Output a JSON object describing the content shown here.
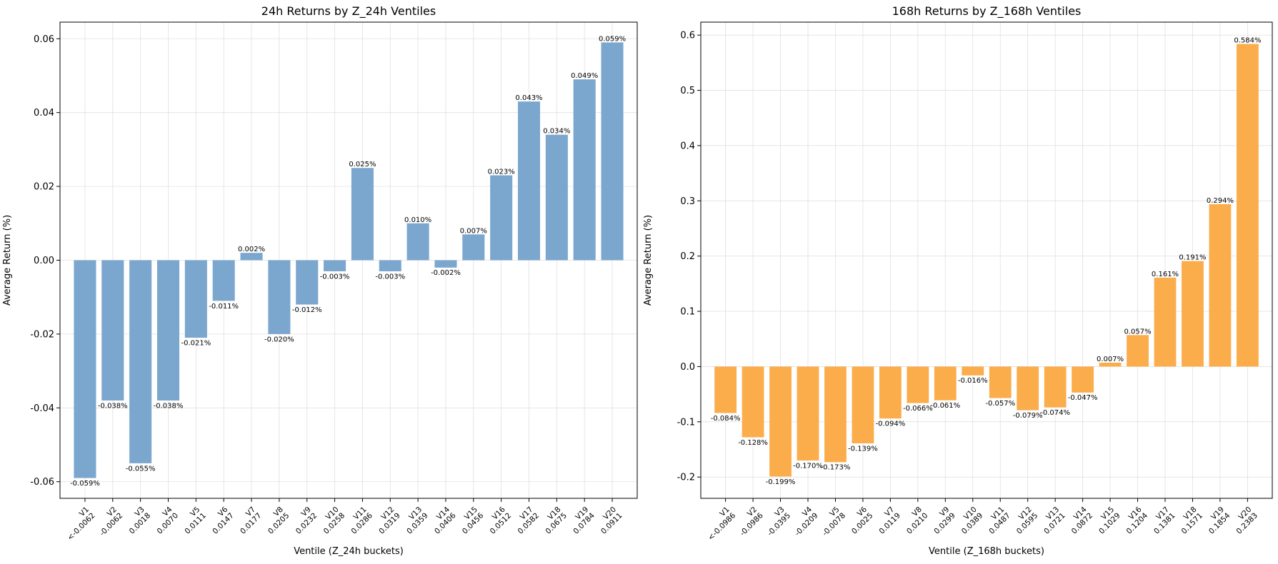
{
  "chart_data": [
    {
      "type": "bar",
      "title": "24h Returns by Z_24h Ventiles",
      "xlabel": "Ventile (Z_24h buckets)",
      "ylabel": "Average Return (%)",
      "ylim": [
        -0.0645,
        0.0645
      ],
      "yticks": [
        "-0.06",
        "-0.04",
        "-0.02",
        "0.00",
        "0.02",
        "0.04",
        "0.06"
      ],
      "ytick_values": [
        -0.06,
        -0.04,
        -0.02,
        0.0,
        0.02,
        0.04,
        0.06
      ],
      "grid": true,
      "color": "#7ba7cf",
      "categories": [
        "V1",
        "V2",
        "V3",
        "V4",
        "V5",
        "V6",
        "V7",
        "V8",
        "V9",
        "V10",
        "V11",
        "V12",
        "V13",
        "V14",
        "V15",
        "V16",
        "V17",
        "V18",
        "V19",
        "V20"
      ],
      "category_bounds": [
        "<-0.0062",
        "-0.0062",
        "0.0018",
        "0.0070",
        "0.0111",
        "0.0147",
        "0.0177",
        "0.0205",
        "0.0232",
        "0.0258",
        "0.0286",
        "0.0319",
        "0.0359",
        "0.0406",
        "0.0456",
        "0.0512",
        "0.0582",
        "0.0675",
        "0.0784",
        "0.0911"
      ],
      "values": [
        -0.059,
        -0.038,
        -0.055,
        -0.038,
        -0.021,
        -0.011,
        0.002,
        -0.02,
        -0.012,
        -0.003,
        0.025,
        -0.003,
        0.01,
        -0.002,
        0.007,
        0.023,
        0.043,
        0.034,
        0.049,
        0.059
      ],
      "value_labels": [
        "-0.059%",
        "-0.038%",
        "-0.055%",
        "-0.038%",
        "-0.021%",
        "-0.011%",
        "0.002%",
        "-0.020%",
        "-0.012%",
        "-0.003%",
        "0.025%",
        "-0.003%",
        "0.010%",
        "-0.002%",
        "0.007%",
        "0.023%",
        "0.043%",
        "0.034%",
        "0.049%",
        "0.059%"
      ]
    },
    {
      "type": "bar",
      "title": "168h Returns by Z_168h Ventiles",
      "xlabel": "Ventile (Z_168h buckets)",
      "ylabel": "Average Return (%)",
      "ylim": [
        -0.2385,
        0.6235
      ],
      "yticks": [
        "-0.2",
        "-0.1",
        "0.0",
        "0.1",
        "0.2",
        "0.3",
        "0.4",
        "0.5",
        "0.6"
      ],
      "ytick_values": [
        -0.2,
        -0.1,
        0.0,
        0.1,
        0.2,
        0.3,
        0.4,
        0.5,
        0.6
      ],
      "grid": true,
      "color": "#fbac4b",
      "categories": [
        "V1",
        "V2",
        "V3",
        "V4",
        "V5",
        "V6",
        "V7",
        "V8",
        "V9",
        "V10",
        "V11",
        "V12",
        "V13",
        "V14",
        "V15",
        "V16",
        "V17",
        "V18",
        "V19",
        "V20"
      ],
      "category_bounds": [
        "<-0.0986",
        "-0.0986",
        "-0.0395",
        "-0.0209",
        "-0.0078",
        "0.0025",
        "0.0119",
        "0.0210",
        "0.0299",
        "0.0389",
        "0.0487",
        "0.0595",
        "0.0721",
        "0.0872",
        "0.1029",
        "0.1204",
        "0.1381",
        "0.1571",
        "0.1854",
        "0.2383"
      ],
      "values": [
        -0.084,
        -0.128,
        -0.199,
        -0.17,
        -0.173,
        -0.139,
        -0.094,
        -0.066,
        -0.061,
        -0.016,
        -0.057,
        -0.079,
        -0.074,
        -0.047,
        0.007,
        0.057,
        0.161,
        0.191,
        0.294,
        0.584
      ],
      "value_labels": [
        "-0.084%",
        "-0.128%",
        "-0.199%",
        "-0.170%",
        "-0.173%",
        "-0.139%",
        "-0.094%",
        "-0.066%",
        "-0.061%",
        "-0.016%",
        "-0.057%",
        "-0.079%",
        "-0.074%",
        "-0.047%",
        "0.007%",
        "0.057%",
        "0.161%",
        "0.191%",
        "0.294%",
        "0.584%"
      ]
    }
  ]
}
